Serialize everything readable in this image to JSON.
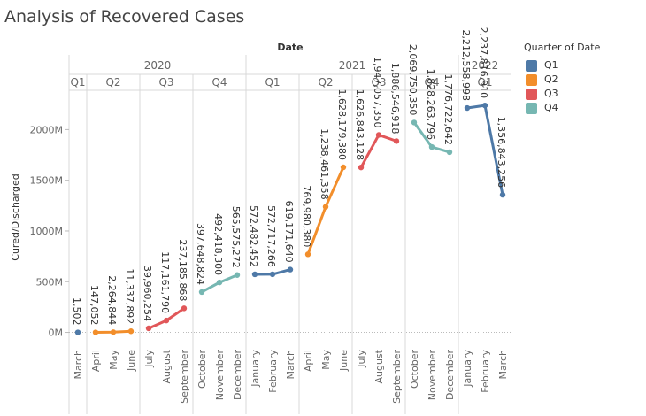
{
  "title": "Analysis of Recovered Cases",
  "chart_data": {
    "type": "line",
    "column_header": "Date",
    "ylabel": "Cured/Discharged",
    "ylim": [
      -100000000,
      2370000000
    ],
    "yticks": [
      0,
      500000000,
      1000000000,
      1500000000,
      2000000000
    ],
    "ytick_labels": [
      "0M",
      "500M",
      "1000M",
      "1500M",
      "2000M"
    ],
    "years": [
      {
        "label": "2020",
        "quarters": [
          "Q1",
          "Q2",
          "Q3",
          "Q4"
        ]
      },
      {
        "label": "2021",
        "quarters": [
          "Q1",
          "Q2",
          "Q3",
          "Q4"
        ]
      },
      {
        "label": "2022",
        "quarters": [
          "Q1"
        ]
      }
    ],
    "panels": [
      {
        "year": "2020",
        "quarter": "Q1",
        "months": [
          "March"
        ],
        "values": [
          1502
        ],
        "labels": [
          "1,502"
        ]
      },
      {
        "year": "2020",
        "quarter": "Q2",
        "months": [
          "April",
          "May",
          "June"
        ],
        "values": [
          147052,
          2264844,
          11337892
        ],
        "labels": [
          "147,052",
          "2,264,844",
          "11,337,892"
        ]
      },
      {
        "year": "2020",
        "quarter": "Q3",
        "months": [
          "July",
          "August",
          "September"
        ],
        "values": [
          39960254,
          117161790,
          237185868
        ],
        "labels": [
          "39,960,254",
          "117,161,790",
          "237,185,868"
        ]
      },
      {
        "year": "2020",
        "quarter": "Q4",
        "months": [
          "October",
          "November",
          "December"
        ],
        "values": [
          397648824,
          492418300,
          565575272
        ],
        "labels": [
          "397,648,824",
          "492,418,300",
          "565,575,272"
        ]
      },
      {
        "year": "2021",
        "quarter": "Q1",
        "months": [
          "January",
          "February",
          "March"
        ],
        "values": [
          572482452,
          572717266,
          619171640
        ],
        "labels": [
          "572,482,452",
          "572,717,266",
          "619,171,640"
        ]
      },
      {
        "year": "2021",
        "quarter": "Q2",
        "months": [
          "April",
          "May",
          "June"
        ],
        "values": [
          769980380,
          1238461358,
          1628179380
        ],
        "labels": [
          "769,980,380",
          "1,238,461,358",
          "1,628,179,380"
        ]
      },
      {
        "year": "2021",
        "quarter": "Q3",
        "months": [
          "July",
          "August",
          "September"
        ],
        "values": [
          1626843128,
          1947057350,
          1886546918
        ],
        "labels": [
          "1,626,843,128",
          "1,947,057,350",
          "1,886,546,918"
        ]
      },
      {
        "year": "2021",
        "quarter": "Q4",
        "months": [
          "October",
          "November",
          "December"
        ],
        "values": [
          2069750350,
          1828263796,
          1776722642
        ],
        "labels": [
          "2,069,750,350",
          "1,828,263,796",
          "1,776,722,642"
        ]
      },
      {
        "year": "2022",
        "quarter": "Q1",
        "months": [
          "January",
          "February",
          "March"
        ],
        "values": [
          2212558998,
          2237816910,
          1356843256
        ],
        "labels": [
          "2,212,558,998",
          "2,237,816,910",
          "1,356,843,256"
        ]
      }
    ],
    "legend": {
      "title": "Quarter of Date",
      "position": "right",
      "items": [
        {
          "label": "Q1",
          "color": "#4e79a7"
        },
        {
          "label": "Q2",
          "color": "#f28e2b"
        },
        {
          "label": "Q3",
          "color": "#e15759"
        },
        {
          "label": "Q4",
          "color": "#76b7b2"
        }
      ]
    },
    "grid": false
  }
}
